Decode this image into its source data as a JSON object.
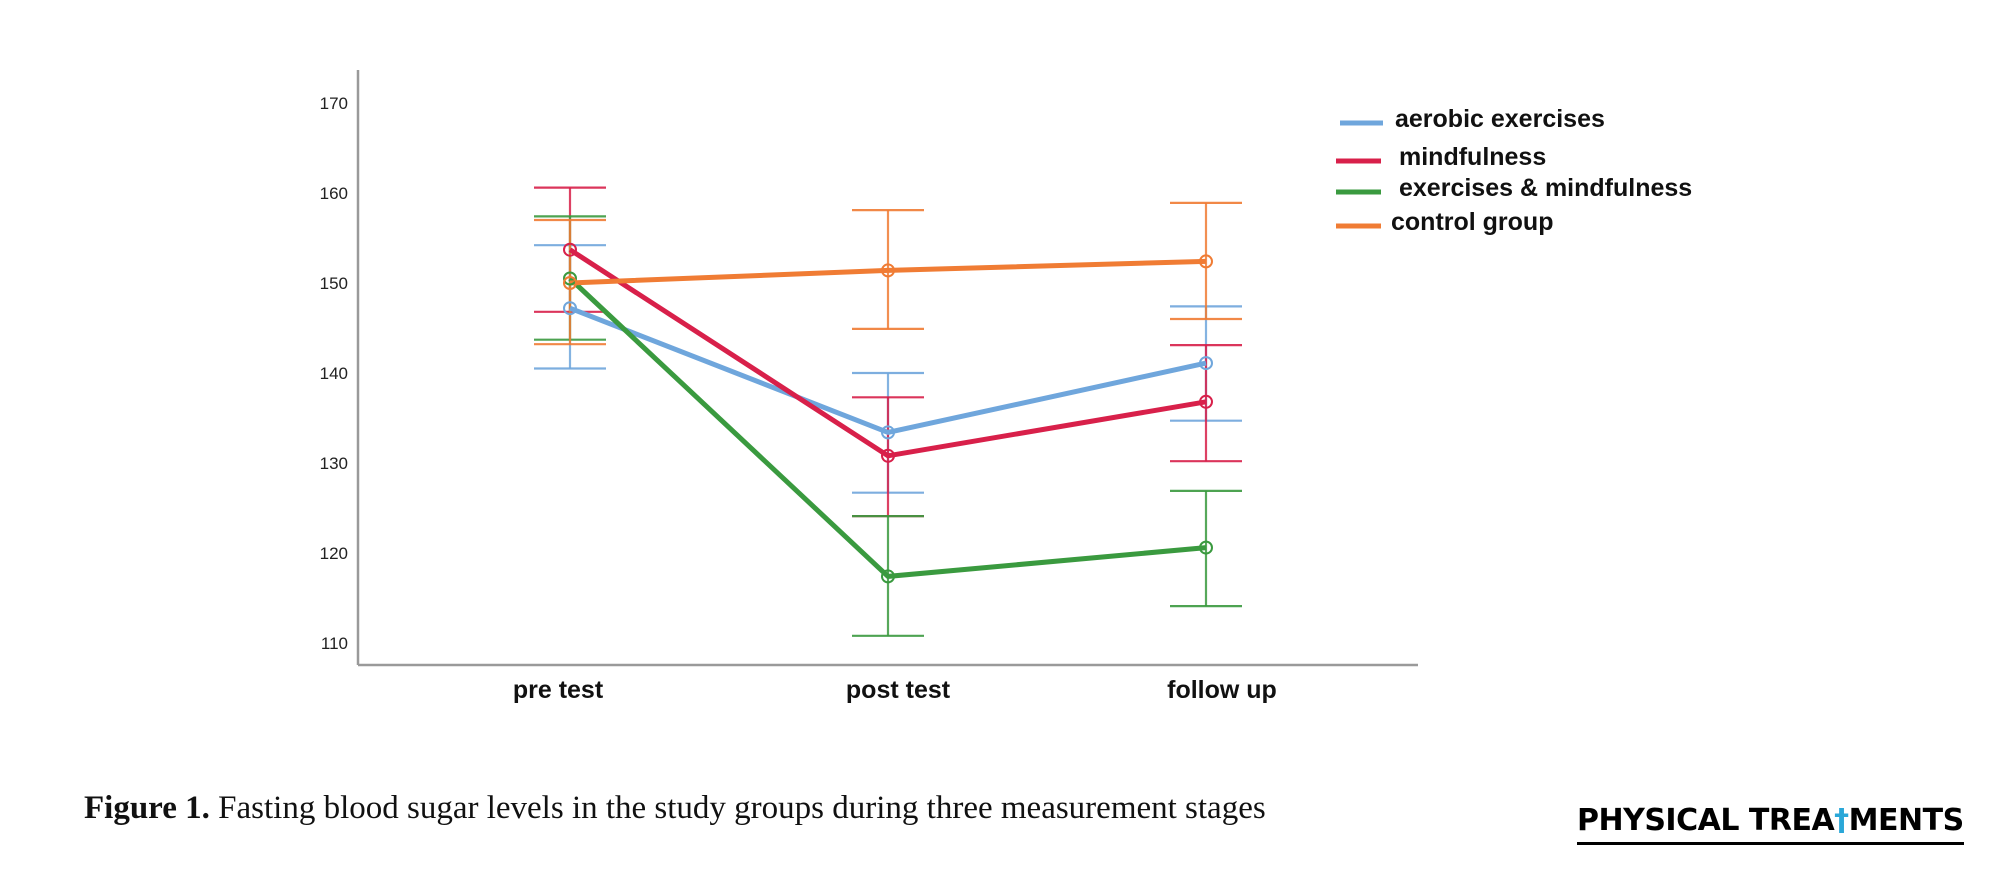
{
  "chart_data": {
    "type": "line",
    "title": "",
    "xlabel": "",
    "ylabel": "",
    "categories": [
      "pre test",
      "post test",
      "follow up"
    ],
    "ylim": [
      107,
      174.5
    ],
    "yticks": [
      110,
      120,
      130,
      140,
      150,
      160,
      170
    ],
    "grid": false,
    "error_bars": true,
    "legend_position": "top-right",
    "series": [
      {
        "name": "aerobic exercises",
        "color": "#6fa6dc",
        "values": [
          147.2,
          133.4,
          141.1
        ],
        "ci_low": [
          140.5,
          126.7,
          134.7
        ],
        "ci_high": [
          154.2,
          140.0,
          147.4
        ]
      },
      {
        "name": "mindfulness",
        "color": "#d8204a",
        "values": [
          153.7,
          130.8,
          136.8
        ],
        "ci_low": [
          146.8,
          124.1,
          130.2
        ],
        "ci_high": [
          160.6,
          137.3,
          143.1
        ]
      },
      {
        "name": "exercises & mindfulness",
        "color": "#3a9a3f",
        "values": [
          150.5,
          117.4,
          120.6
        ],
        "ci_low": [
          143.7,
          110.8,
          114.1
        ],
        "ci_high": [
          157.4,
          124.1,
          126.9
        ]
      },
      {
        "name": "control group",
        "color": "#f07c34",
        "values": [
          150.0,
          151.4,
          152.4
        ],
        "ci_low": [
          143.2,
          144.9,
          146.0
        ],
        "ci_high": [
          157.0,
          158.1,
          158.9
        ]
      }
    ]
  },
  "caption": {
    "label": "Figure 1.",
    "text": " Fasting blood sugar levels in the study groups during three measurement stages"
  },
  "logo": {
    "text_before": "PHYSICAL TREA",
    "icon": "human-figure-icon",
    "text_after": "MENTS"
  }
}
